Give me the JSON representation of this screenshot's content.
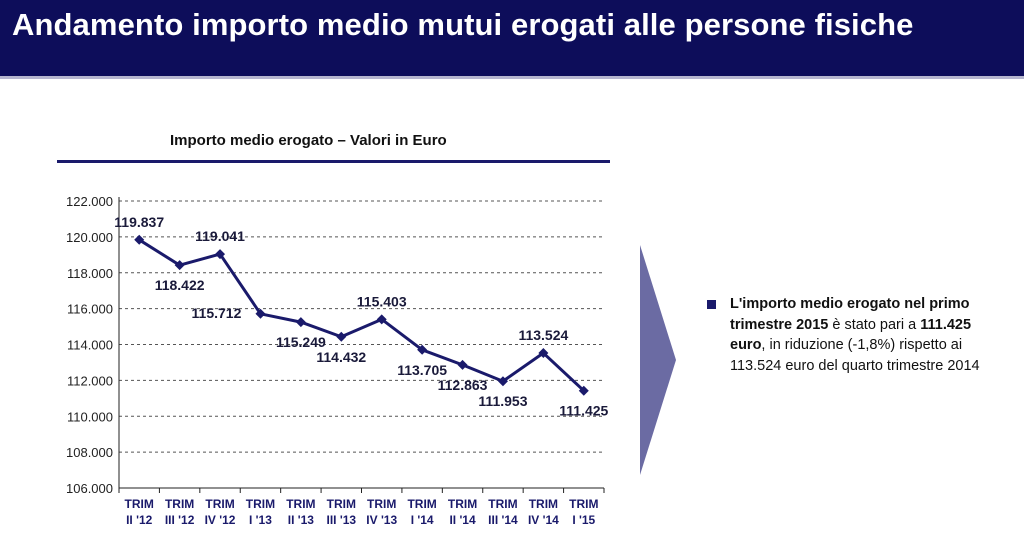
{
  "header": {
    "title": "Andamento importo medio mutui erogati alle persone fisiche"
  },
  "colors": {
    "header_bg": "#0d0d5a",
    "series": "#1a1a6b",
    "arrow": "#6b6ba3"
  },
  "note": {
    "parts": [
      {
        "text": "L'importo medio erogato nel primo trimestre 2015",
        "bold": true
      },
      {
        "text": " è stato pari a ",
        "bold": false
      },
      {
        "text": "111.425 euro",
        "bold": true
      },
      {
        "text": ", in riduzione (-1,8%) rispetto ai 113.524 euro del quarto trimestre 2014",
        "bold": false
      }
    ]
  },
  "chart_data": {
    "type": "line",
    "title": "Importo medio erogato – Valori in Euro",
    "xlabel": "",
    "ylabel": "",
    "categories": [
      [
        "TRIM",
        "II '12"
      ],
      [
        "TRIM",
        "III '12"
      ],
      [
        "TRIM",
        "IV '12"
      ],
      [
        "TRIM",
        "I '13"
      ],
      [
        "TRIM",
        "II '13"
      ],
      [
        "TRIM",
        "III '13"
      ],
      [
        "TRIM",
        "IV '13"
      ],
      [
        "TRIM",
        "I '14"
      ],
      [
        "TRIM",
        "II '14"
      ],
      [
        "TRIM",
        "III '14"
      ],
      [
        "TRIM",
        "IV '14"
      ],
      [
        "TRIM",
        "I '15"
      ]
    ],
    "values": [
      119837,
      118422,
      119041,
      115712,
      115249,
      114432,
      115403,
      113705,
      112863,
      111953,
      113524,
      111425
    ],
    "data_labels": [
      "119.837",
      "118.422",
      "119.041",
      "115.712",
      "115.249",
      "114.432",
      "115.403",
      "113.705",
      "112.863",
      "111.953",
      "113.524",
      "111.425"
    ],
    "yticks": [
      "106.000",
      "108.000",
      "110.000",
      "112.000",
      "114.000",
      "116.000",
      "118.000",
      "120.000",
      "122.000"
    ],
    "ylim": [
      106000,
      122000
    ],
    "grid": true,
    "legend": "none"
  }
}
